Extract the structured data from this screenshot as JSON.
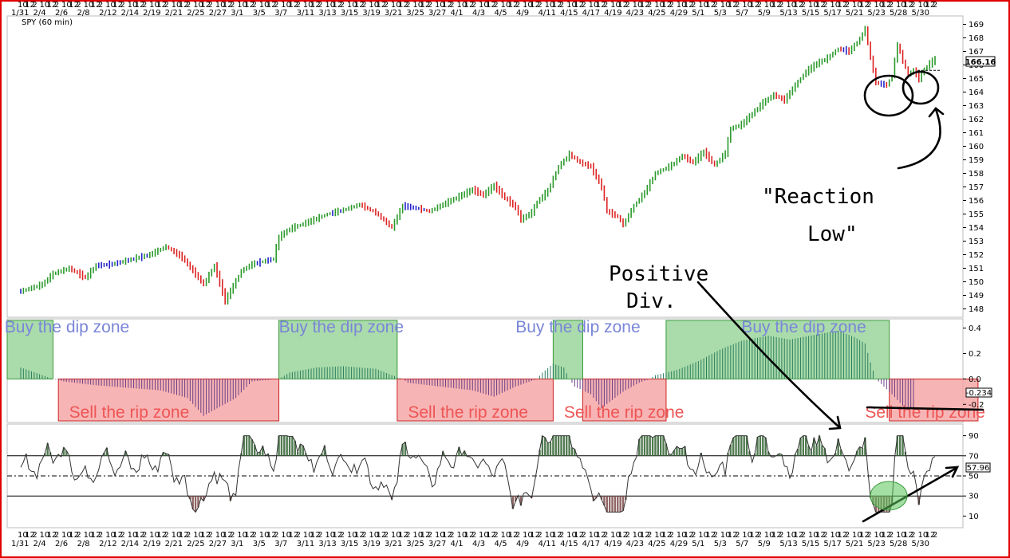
{
  "chart_data": [
    {
      "type": "candlestick",
      "title": "SPY (60 min)",
      "last_price": "166.16",
      "ylim": [
        147.5,
        169.5
      ],
      "y_ticks": [
        148,
        149,
        150,
        151,
        152,
        153,
        154,
        155,
        156,
        157,
        158,
        159,
        160,
        161,
        162,
        163,
        164,
        165,
        166,
        167,
        168,
        169
      ],
      "x_date_labels": [
        "1/31",
        "2/4",
        "2/6",
        "2/8",
        "2/12",
        "2/14",
        "2/19",
        "2/21",
        "2/25",
        "2/27",
        "3/1",
        "3/5",
        "3/7",
        "3/11",
        "3/13",
        "3/15",
        "3/19",
        "3/21",
        "3/25",
        "3/27",
        "4/1",
        "4/3",
        "4/5",
        "4/9",
        "4/11",
        "4/15",
        "4/17",
        "4/19",
        "4/23",
        "4/25",
        "4/29",
        "5/1",
        "5/3",
        "5/7",
        "5/9",
        "5/13",
        "5/15",
        "5/17",
        "5/21",
        "5/23",
        "5/28",
        "5/30"
      ],
      "x_hour_labels": [
        "10",
        "12",
        "2"
      ],
      "bar_colors": {
        "up": "#2a9a2a",
        "down": "#dd2222",
        "neutral": "#2222cc"
      },
      "price_path": [
        [
          0,
          149.3
        ],
        [
          4,
          149.8
        ],
        [
          6,
          150.6
        ],
        [
          9,
          151.0
        ],
        [
          12,
          150.3
        ],
        [
          14,
          151.2
        ],
        [
          17,
          151.3
        ],
        [
          20,
          151.6
        ],
        [
          24,
          152.0
        ],
        [
          27,
          152.6
        ],
        [
          30,
          151.8
        ],
        [
          34,
          149.8
        ],
        [
          36,
          151.2
        ],
        [
          38,
          148.6
        ],
        [
          41,
          150.8
        ],
        [
          43,
          151.3
        ],
        [
          45,
          151.5
        ],
        [
          47,
          151.7
        ],
        [
          48,
          153.3
        ],
        [
          50,
          153.9
        ],
        [
          54,
          154.5
        ],
        [
          57,
          155.0
        ],
        [
          60,
          155.3
        ],
        [
          63,
          155.7
        ],
        [
          66,
          155.1
        ],
        [
          69,
          154.0
        ],
        [
          71,
          155.6
        ],
        [
          74,
          155.4
        ],
        [
          76,
          155.2
        ],
        [
          78,
          155.6
        ],
        [
          81,
          156.2
        ],
        [
          84,
          156.8
        ],
        [
          86,
          156.4
        ],
        [
          88,
          157.1
        ],
        [
          90,
          156.2
        ],
        [
          92,
          155.5
        ],
        [
          93,
          154.6
        ],
        [
          95,
          155.1
        ],
        [
          96,
          155.9
        ],
        [
          98,
          156.7
        ],
        [
          100,
          158.5
        ],
        [
          102,
          159.4
        ],
        [
          104,
          158.8
        ],
        [
          106,
          158.5
        ],
        [
          108,
          157.0
        ],
        [
          109,
          155.2
        ],
        [
          111,
          154.8
        ],
        [
          112,
          154.2
        ],
        [
          114,
          155.6
        ],
        [
          116,
          156.6
        ],
        [
          118,
          158.0
        ],
        [
          121,
          158.6
        ],
        [
          123,
          159.3
        ],
        [
          125,
          158.8
        ],
        [
          127,
          159.6
        ],
        [
          129,
          158.6
        ],
        [
          131,
          159.5
        ],
        [
          132,
          161.3
        ],
        [
          134,
          161.6
        ],
        [
          136,
          162.4
        ],
        [
          138,
          163.2
        ],
        [
          140,
          163.8
        ],
        [
          142,
          163.4
        ],
        [
          144,
          164.5
        ],
        [
          146,
          165.5
        ],
        [
          148,
          166.1
        ],
        [
          150,
          166.5
        ],
        [
          152,
          167.2
        ],
        [
          154,
          167.0
        ],
        [
          156,
          167.9
        ],
        [
          157,
          168.7
        ],
        [
          158,
          166.5
        ],
        [
          159,
          164.7
        ],
        [
          161,
          164.5
        ],
        [
          162,
          165.2
        ],
        [
          163,
          167.5
        ],
        [
          164,
          166.3
        ],
        [
          165,
          165.3
        ],
        [
          166,
          165.6
        ],
        [
          167,
          165.0
        ],
        [
          168,
          165.7
        ],
        [
          169,
          166.1
        ],
        [
          170,
          166.4
        ]
      ]
    },
    {
      "type": "histogram",
      "ylim": [
        -0.33,
        0.46
      ],
      "y_ticks": [
        "0.4",
        "0.2",
        "0.0",
        "-0.2"
      ],
      "last_value": "-0.234",
      "hist_path": [
        [
          0,
          0.09
        ],
        [
          4,
          0.03
        ],
        [
          6,
          0.0
        ],
        [
          8,
          -0.02
        ],
        [
          14,
          -0.05
        ],
        [
          20,
          -0.07
        ],
        [
          26,
          -0.09
        ],
        [
          31,
          -0.15
        ],
        [
          34,
          -0.29
        ],
        [
          37,
          -0.22
        ],
        [
          40,
          -0.15
        ],
        [
          43,
          -0.02
        ],
        [
          48,
          0.0
        ],
        [
          50,
          0.05
        ],
        [
          55,
          0.09
        ],
        [
          60,
          0.1
        ],
        [
          66,
          0.08
        ],
        [
          69,
          0.03
        ],
        [
          71,
          0.0
        ],
        [
          72,
          -0.03
        ],
        [
          76,
          -0.05
        ],
        [
          84,
          -0.09
        ],
        [
          88,
          -0.14
        ],
        [
          92,
          -0.06
        ],
        [
          96,
          -0.0
        ],
        [
          97,
          0.05
        ],
        [
          99,
          0.12
        ],
        [
          101,
          0.09
        ],
        [
          102,
          0.0
        ],
        [
          103,
          -0.06
        ],
        [
          106,
          -0.12
        ],
        [
          108,
          -0.23
        ],
        [
          112,
          -0.1
        ],
        [
          115,
          -0.03
        ],
        [
          117,
          0.0
        ],
        [
          118,
          0.03
        ],
        [
          122,
          0.07
        ],
        [
          126,
          0.14
        ],
        [
          130,
          0.23
        ],
        [
          134,
          0.3
        ],
        [
          139,
          0.34
        ],
        [
          143,
          0.31
        ],
        [
          148,
          0.35
        ],
        [
          152,
          0.38
        ],
        [
          155,
          0.33
        ],
        [
          157,
          0.28
        ],
        [
          158,
          0.13
        ],
        [
          159,
          0.0
        ],
        [
          160,
          -0.04
        ],
        [
          162,
          -0.12
        ],
        [
          164,
          -0.21
        ],
        [
          166,
          -0.23
        ]
      ],
      "zones": [
        {
          "label": "Buy the dip zone",
          "kind": "buy",
          "from": -3,
          "to": 6,
          "label_anchor": -3
        },
        {
          "label": "Sell the rip zone",
          "kind": "sell",
          "from": 7,
          "to": 48,
          "label_anchor": 9
        },
        {
          "label": "Buy the dip zone",
          "kind": "buy",
          "from": 48,
          "to": 70,
          "label_anchor": 48
        },
        {
          "label": "Sell the rip zone",
          "kind": "sell",
          "from": 70,
          "to": 99,
          "label_anchor": 72
        },
        {
          "label": "Buy the dip zone",
          "kind": "buy",
          "from": 99,
          "to": 104.5,
          "label_anchor": 92
        },
        {
          "label": "Sell the rip zone",
          "kind": "sell",
          "from": 104.5,
          "to": 120,
          "label_anchor": 101
        },
        {
          "label": "Buy the dip zone",
          "kind": "buy",
          "from": 120,
          "to": 161.5,
          "label_anchor": 134
        },
        {
          "label": "Sell the rip zone",
          "kind": "sell",
          "from": 161.5,
          "to": 178,
          "label_anchor": 157
        }
      ]
    },
    {
      "type": "line",
      "ylim": [
        0,
        100
      ],
      "y_ticks": [
        "90",
        "70",
        "50",
        "30",
        "10"
      ],
      "levels": [
        70,
        50,
        30
      ],
      "last_value": "57.96"
    }
  ],
  "annotations": {
    "reaction_low": [
      "\"Reaction",
      "Low\""
    ],
    "positive_div": [
      "Positive",
      "Div."
    ]
  },
  "colors": {
    "frame": "#e00000",
    "buy_fill": "#9bd59b",
    "buy_stroke": "#3a9a3a",
    "buy_text": "#7a86d8",
    "sell_fill": "#f6a7a7",
    "sell_stroke": "#cc2222",
    "sell_text": "#ee5555",
    "hist_pos": "#2c7e5f",
    "hist_neg": "#6b3f86",
    "rsi_high": "#517a51",
    "rsi_low": "#906666"
  }
}
